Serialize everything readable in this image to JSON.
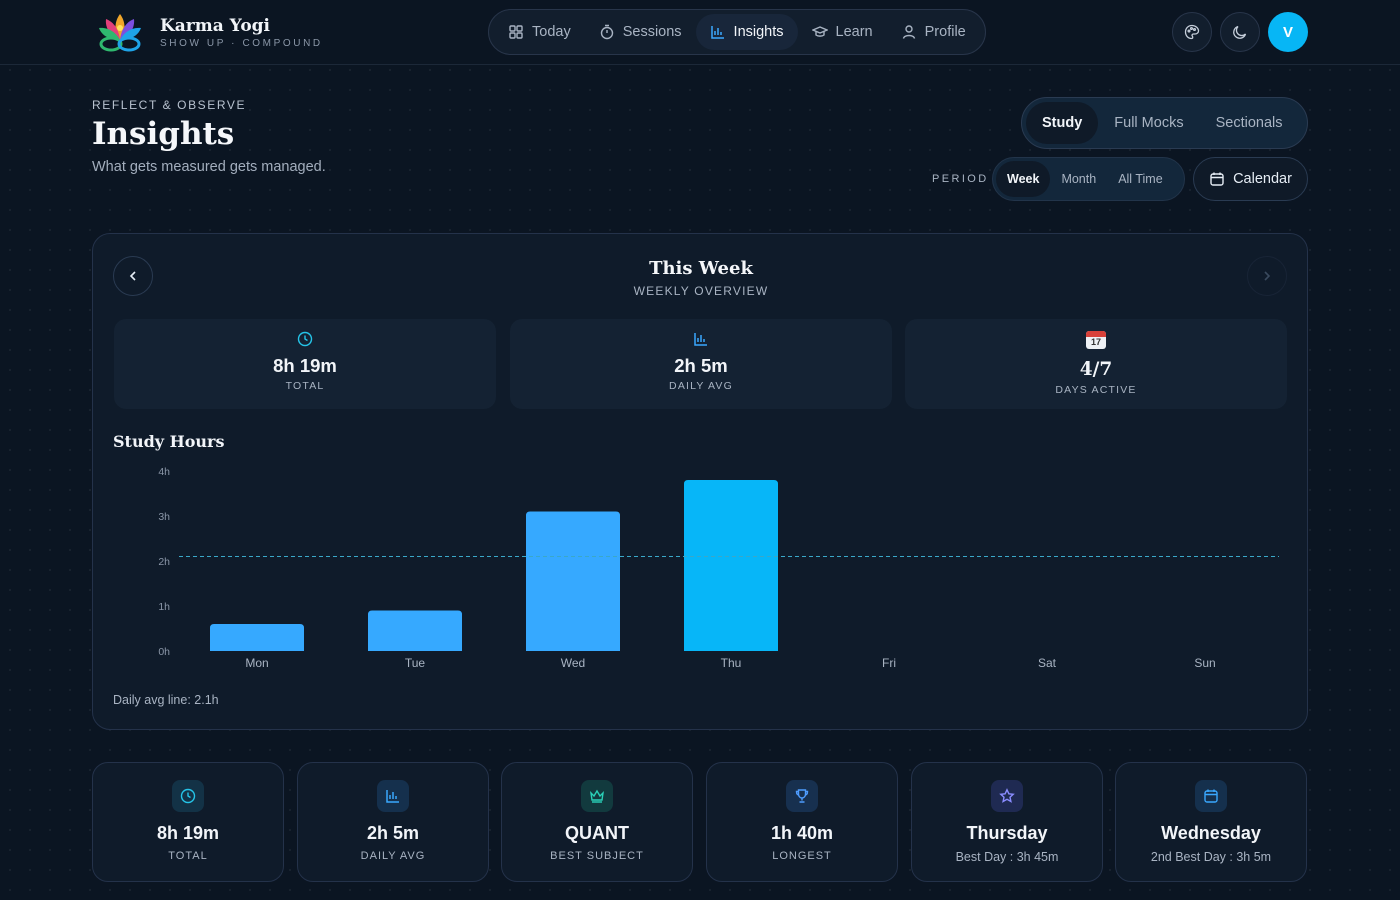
{
  "app": {
    "name": "Karma Yogi",
    "tagline": "SHOW UP · COMPOUND",
    "avatar_initial": "V"
  },
  "nav": [
    {
      "label": "Today",
      "icon": "grid-icon",
      "active": false
    },
    {
      "label": "Sessions",
      "icon": "stopwatch-icon",
      "active": false
    },
    {
      "label": "Insights",
      "icon": "bar-chart-icon",
      "active": true
    },
    {
      "label": "Learn",
      "icon": "graduation-cap-icon",
      "active": false
    },
    {
      "label": "Profile",
      "icon": "user-icon",
      "active": false
    }
  ],
  "header": {
    "eyebrow": "REFLECT & OBSERVE",
    "title": "Insights",
    "subtitle": "What gets measured gets managed."
  },
  "mode_tabs": [
    {
      "label": "Study",
      "active": true
    },
    {
      "label": "Full Mocks",
      "active": false
    },
    {
      "label": "Sectionals",
      "active": false
    }
  ],
  "period": {
    "label": "PERIOD",
    "options": [
      {
        "label": "Week",
        "active": true
      },
      {
        "label": "Month",
        "active": false
      },
      {
        "label": "All Time",
        "active": false
      }
    ],
    "calendar_label": "Calendar"
  },
  "overview": {
    "title": "This Week",
    "subtitle": "WEEKLY OVERVIEW",
    "stats": [
      {
        "value": "8h 19m",
        "label": "TOTAL",
        "icon": "clock-icon"
      },
      {
        "value": "2h 5m",
        "label": "DAILY AVG",
        "icon": "bar-chart-icon"
      },
      {
        "value": "4/7",
        "label": "DAYS ACTIVE",
        "icon": "calendar-emoji-icon",
        "emoji_day": "17"
      }
    ]
  },
  "chart_data": {
    "type": "bar",
    "title": "Study Hours",
    "categories": [
      "Mon",
      "Tue",
      "Wed",
      "Thu",
      "Fri",
      "Sat",
      "Sun"
    ],
    "values": [
      0.6,
      0.9,
      3.1,
      3.8,
      0,
      0,
      0
    ],
    "yticks": [
      {
        "v": 0,
        "label": "0h"
      },
      {
        "v": 1,
        "label": "1h"
      },
      {
        "v": 2,
        "label": "2h"
      },
      {
        "v": 3,
        "label": "3h"
      },
      {
        "v": 4,
        "label": "4h"
      }
    ],
    "ylim": [
      0,
      4
    ],
    "avg_line": 2.1,
    "highlight_index": 3,
    "colors": {
      "bar": "#36a9ff",
      "highlight": "#07b6f8",
      "avg_line": "#3aa8c8"
    },
    "footnote": "Daily avg line: 2.1h"
  },
  "summary": [
    {
      "value": "8h 19m",
      "label": "TOTAL",
      "icon": "clock-icon",
      "color": "#25c4e8",
      "bg": "#133246"
    },
    {
      "value": "2h 5m",
      "label": "DAILY AVG",
      "icon": "bar-chart-icon",
      "color": "#3aa8ff",
      "bg": "#15304d"
    },
    {
      "value": "QUANT",
      "label": "BEST SUBJECT",
      "icon": "crown-icon",
      "color": "#2ad1b8",
      "bg": "#123a3e"
    },
    {
      "value": "1h 40m",
      "label": "LONGEST",
      "icon": "trophy-icon",
      "color": "#4f9dff",
      "bg": "#17304f"
    },
    {
      "value": "Thursday",
      "label": "Best Day : 3h 45m",
      "icon": "star-icon",
      "color": "#8a8cff",
      "bg": "#1f2a52"
    },
    {
      "value": "Wednesday",
      "label": "2nd Best Day : 3h 5m",
      "icon": "calendar-icon",
      "color": "#3aa8ff",
      "bg": "#15304d"
    }
  ]
}
